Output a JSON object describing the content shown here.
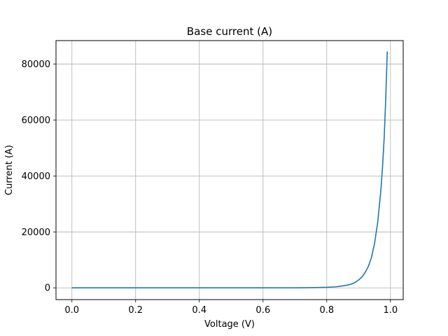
{
  "chart_data": {
    "type": "line",
    "title": "Base current (A)",
    "xlabel": "Voltage (V)",
    "ylabel": "Current (A)",
    "xlim": [
      -0.05,
      1.04
    ],
    "ylim": [
      -4200,
      88400
    ],
    "grid": true,
    "xticks": [
      0.0,
      0.2,
      0.4,
      0.6,
      0.8,
      1.0
    ],
    "xtick_labels": [
      "0.0",
      "0.2",
      "0.4",
      "0.6",
      "0.8",
      "1.0"
    ],
    "yticks": [
      0,
      20000,
      40000,
      60000,
      80000
    ],
    "ytick_labels": [
      "0",
      "20000",
      "40000",
      "60000",
      "80000"
    ],
    "colors": {
      "line": "#1f77b4",
      "grid": "#b0b0b0",
      "axes": "#000000"
    },
    "series": [
      {
        "x": [
          0.0,
          0.1,
          0.2,
          0.3,
          0.4,
          0.5,
          0.6,
          0.7,
          0.75,
          0.8,
          0.83,
          0.85,
          0.87,
          0.88,
          0.89,
          0.9,
          0.91,
          0.92,
          0.93,
          0.94,
          0.95,
          0.96,
          0.97,
          0.975,
          0.98,
          0.985,
          0.99
        ],
        "y": [
          0,
          0,
          0,
          0,
          0,
          0,
          0,
          8,
          60,
          200,
          400,
          700,
          1100,
          1500,
          2000,
          2800,
          3800,
          5400,
          7500,
          10700,
          15800,
          23500,
          35000,
          43000,
          53000,
          67000,
          84500
        ]
      }
    ]
  }
}
